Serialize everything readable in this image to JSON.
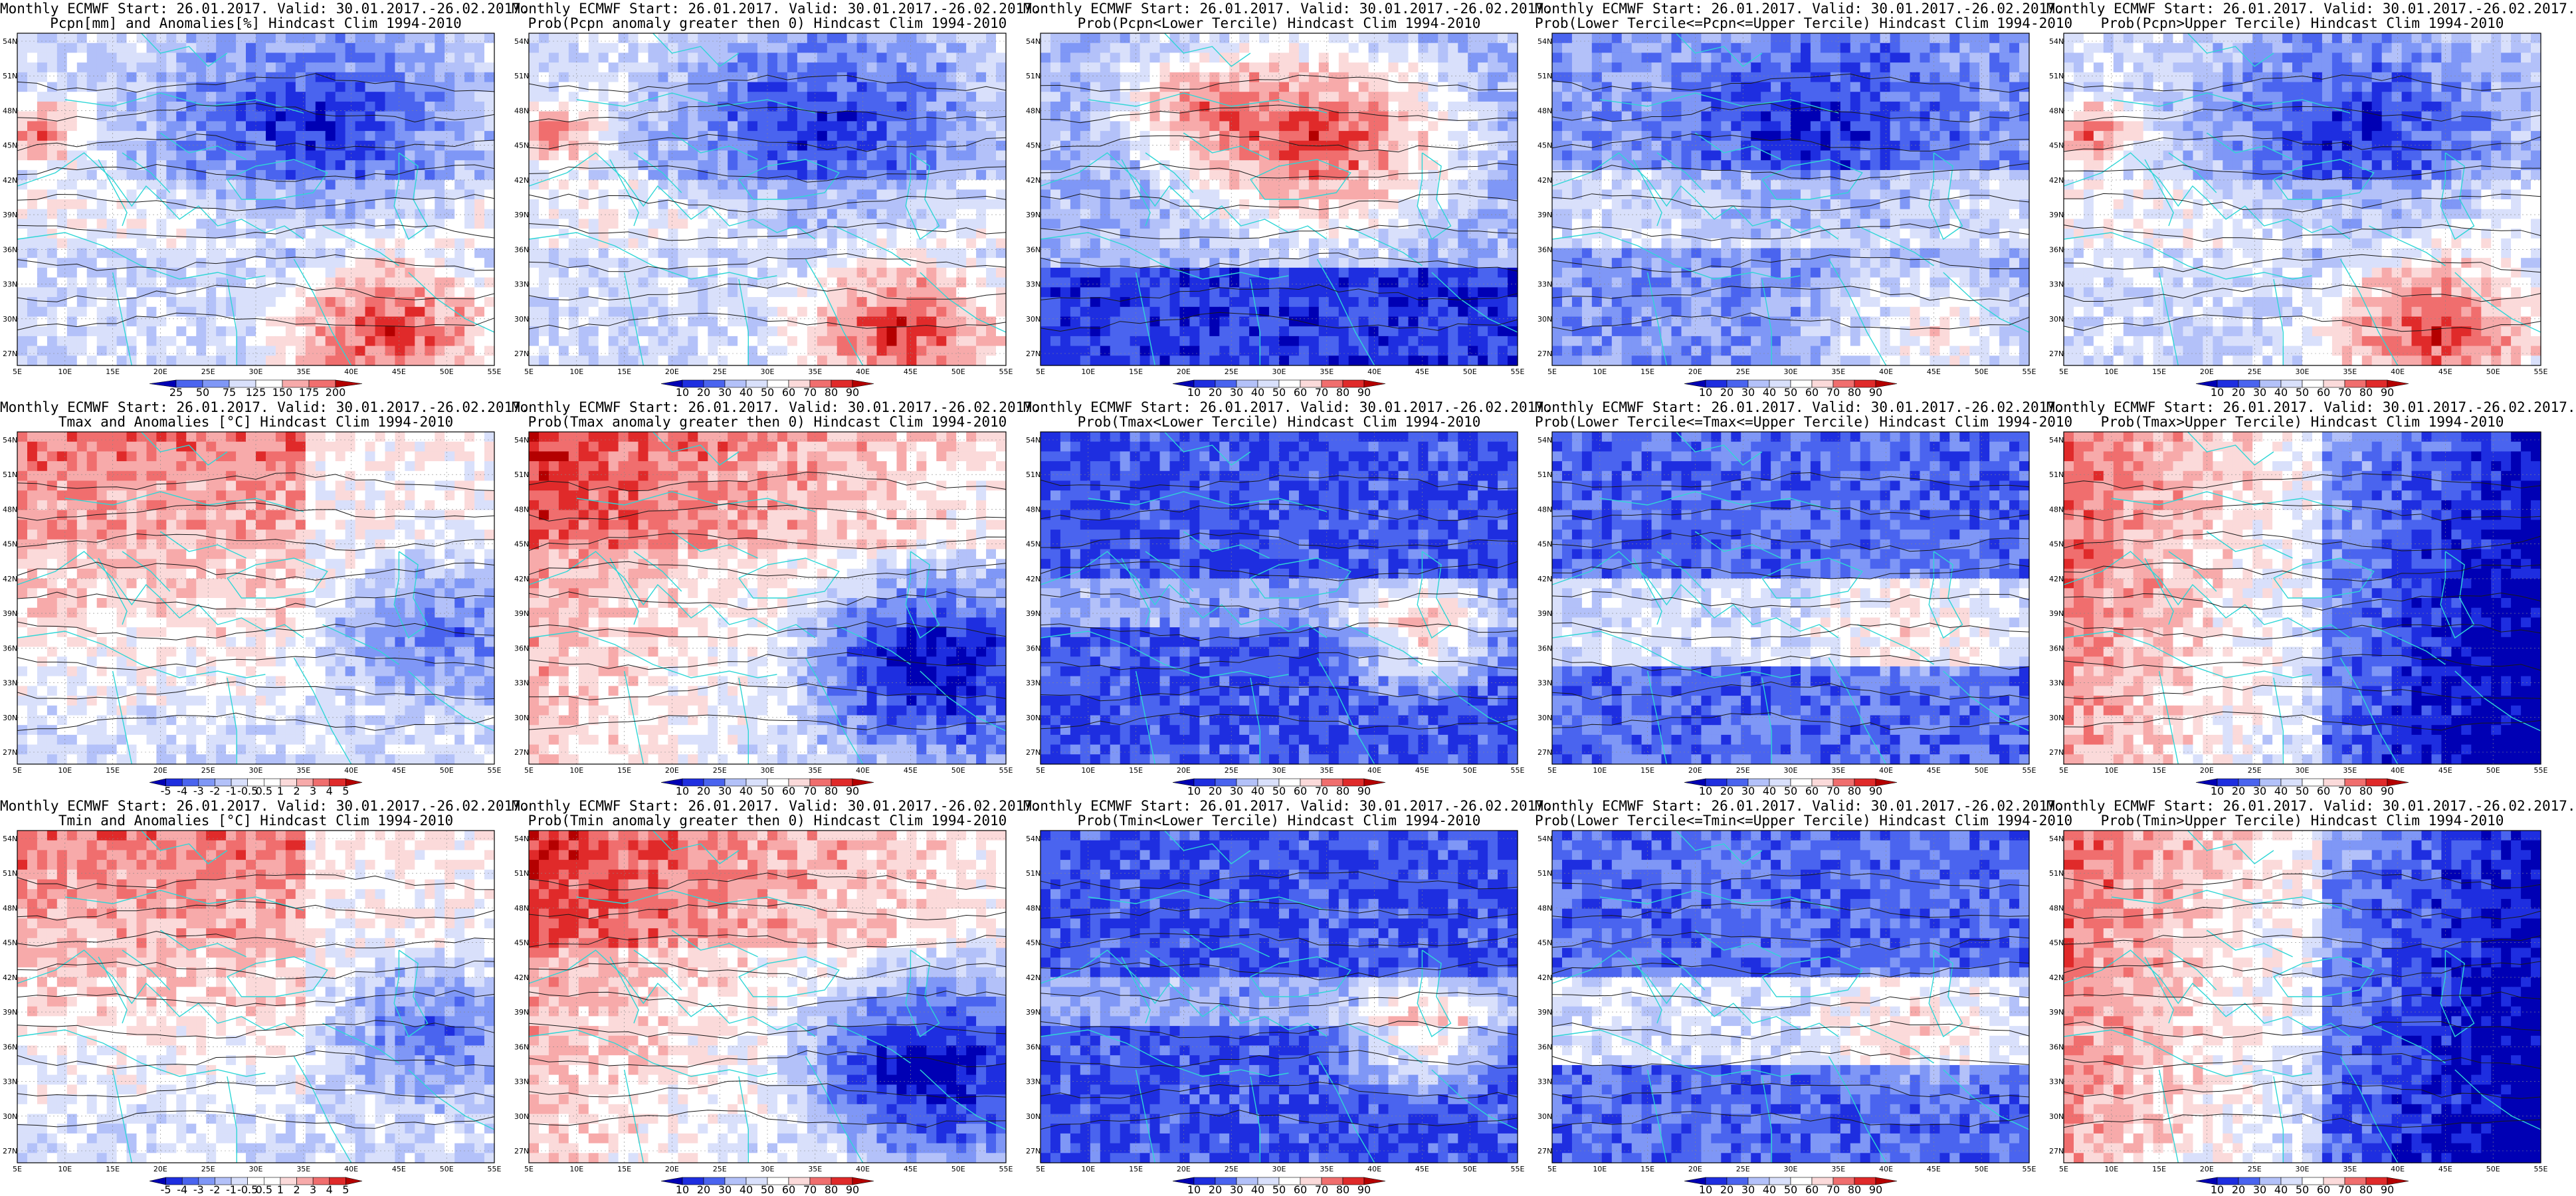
{
  "layout_note_free": true,
  "latitudes": [
    "54N",
    "51N",
    "48N",
    "45N",
    "42N",
    "39N",
    "36N",
    "33N",
    "30N",
    "27N"
  ],
  "longitudes": [
    "5E",
    "10E",
    "15E",
    "20E",
    "25E",
    "30E",
    "35E",
    "40E",
    "45E",
    "50E",
    "55E"
  ],
  "colors": {
    "coast": "#2fd6d6",
    "contour": "#1a1a1a",
    "scale_blue": [
      "#0000b4",
      "#1e2ee0",
      "#4a64ef",
      "#7f97f6",
      "#b3c1f9",
      "#d9e0fb",
      "#ffffff",
      "#fbdada",
      "#f7aaaa",
      "#f06e6e",
      "#e02a2a",
      "#b40000"
    ]
  },
  "colorbars": {
    "prob": [
      "10",
      "20",
      "30",
      "40",
      "50",
      "60",
      "70",
      "80",
      "90"
    ],
    "pcpn": [
      "25",
      "50",
      "75",
      "125",
      "150",
      "175",
      "200"
    ],
    "temp": [
      "-5",
      "-4",
      "-3",
      "-2",
      "-1",
      "-0.5",
      "0.5",
      "1",
      "2",
      "3",
      "4",
      "5"
    ]
  },
  "panels": [
    {
      "title1": "Monthly ECMWF Start: 26.01.2017. Valid: 30.01.2017.-26.02.2017.",
      "title2": "Pcpn[mm] and Anomalies[%] Hindcast Clim 1994-2010",
      "cbar": "pcpn",
      "pattern": "pcpn_anom"
    },
    {
      "title1": "Monthly ECMWF Start: 26.01.2017. Valid: 30.01.2017.-26.02.2017.",
      "title2": "Prob(Pcpn anomaly greater then 0) Hindcast Clim 1994-2010",
      "cbar": "prob",
      "pattern": "pcpn_anom"
    },
    {
      "title1": "Monthly ECMWF Start: 26.01.2017. Valid: 30.01.2017.-26.02.2017.",
      "title2": "Prob(Pcpn<Lower Tercile) Hindcast Clim 1994-2010",
      "cbar": "prob",
      "pattern": "pcpn_lower"
    },
    {
      "title1": "Monthly ECMWF Start: 26.01.2017. Valid: 30.01.2017.-26.02.2017.",
      "title2": "Prob(Lower Tercile<=Pcpn<=Upper Tercile) Hindcast Clim 1994-2010",
      "cbar": "prob",
      "pattern": "pcpn_mid"
    },
    {
      "title1": "Monthly ECMWF Start: 26.01.2017. Valid: 30.01.2017.-26.02.2017.",
      "title2": "Prob(Pcpn>Upper Tercile) Hindcast Clim 1994-2010",
      "cbar": "prob",
      "pattern": "pcpn_anom"
    },
    {
      "title1": "Monthly ECMWF Start: 26.01.2017. Valid: 30.01.2017.-26.02.2017.",
      "title2": "Tmax and Anomalies [°C] Hindcast Clim 1994-2010",
      "cbar": "temp",
      "pattern": "temp_anom"
    },
    {
      "title1": "Monthly ECMWF Start: 26.01.2017. Valid: 30.01.2017.-26.02.2017.",
      "title2": "Prob(Tmax anomaly greater then 0) Hindcast Clim 1994-2010",
      "cbar": "prob",
      "pattern": "temp_prob"
    },
    {
      "title1": "Monthly ECMWF Start: 26.01.2017. Valid: 30.01.2017.-26.02.2017.",
      "title2": "Prob(Tmax<Lower Tercile) Hindcast Clim 1994-2010",
      "cbar": "prob",
      "pattern": "temp_lower"
    },
    {
      "title1": "Monthly ECMWF Start: 26.01.2017. Valid: 30.01.2017.-26.02.2017.",
      "title2": "Prob(Lower Tercile<=Tmax<=Upper Tercile) Hindcast Clim 1994-2010",
      "cbar": "prob",
      "pattern": "temp_mid"
    },
    {
      "title1": "Monthly ECMWF Start: 26.01.2017. Valid: 30.01.2017.-26.02.2017.",
      "title2": "Prob(Tmax>Upper Tercile) Hindcast Clim 1994-2010",
      "cbar": "prob",
      "pattern": "temp_upper"
    },
    {
      "title1": "Monthly ECMWF Start: 26.01.2017. Valid: 30.01.2017.-26.02.2017.",
      "title2": "Tmin and Anomalies [°C] Hindcast Clim 1994-2010",
      "cbar": "temp",
      "pattern": "temp_anom"
    },
    {
      "title1": "Monthly ECMWF Start: 26.01.2017. Valid: 30.01.2017.-26.02.2017.",
      "title2": "Prob(Tmin anomaly greater then 0) Hindcast Clim 1994-2010",
      "cbar": "prob",
      "pattern": "temp_prob"
    },
    {
      "title1": "Monthly ECMWF Start: 26.01.2017. Valid: 30.01.2017.-26.02.2017.",
      "title2": "Prob(Tmin<Lower Tercile) Hindcast Clim 1994-2010",
      "cbar": "prob",
      "pattern": "temp_lower"
    },
    {
      "title1": "Monthly ECMWF Start: 26.01.2017. Valid: 30.01.2017.-26.02.2017.",
      "title2": "Prob(Lower Tercile<=Tmin<=Upper Tercile) Hindcast Clim 1994-2010",
      "cbar": "prob",
      "pattern": "temp_mid"
    },
    {
      "title1": "Monthly ECMWF Start: 26.01.2017. Valid: 30.01.2017.-26.02.2017.",
      "title2": "Prob(Tmin>Upper Tercile) Hindcast Clim 1994-2010",
      "cbar": "prob",
      "pattern": "temp_upper"
    }
  ]
}
